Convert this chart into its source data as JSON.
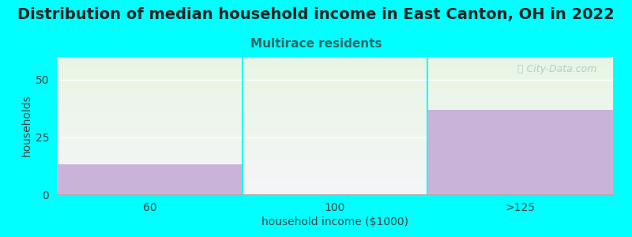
{
  "title": "Distribution of median household income in East Canton, OH in 2022",
  "subtitle": "Multirace residents",
  "xlabel": "household income ($1000)",
  "ylabel": "households",
  "categories": [
    "60",
    "100",
    ">125"
  ],
  "values": [
    13,
    0,
    37
  ],
  "bar_color": "#c9b3d9",
  "bg_color": "#00ffff",
  "plot_bg_colors": [
    "#f5f5f8",
    "#e8f5e4"
  ],
  "ylim": [
    0,
    60
  ],
  "yticks": [
    0,
    25,
    50
  ],
  "title_fontsize": 14,
  "title_color": "#222222",
  "subtitle_fontsize": 11,
  "subtitle_color": "#336666",
  "axis_label_fontsize": 10,
  "tick_fontsize": 10,
  "watermark_text": "ⓘ City-Data.com",
  "watermark_color": "#b0c8c8"
}
